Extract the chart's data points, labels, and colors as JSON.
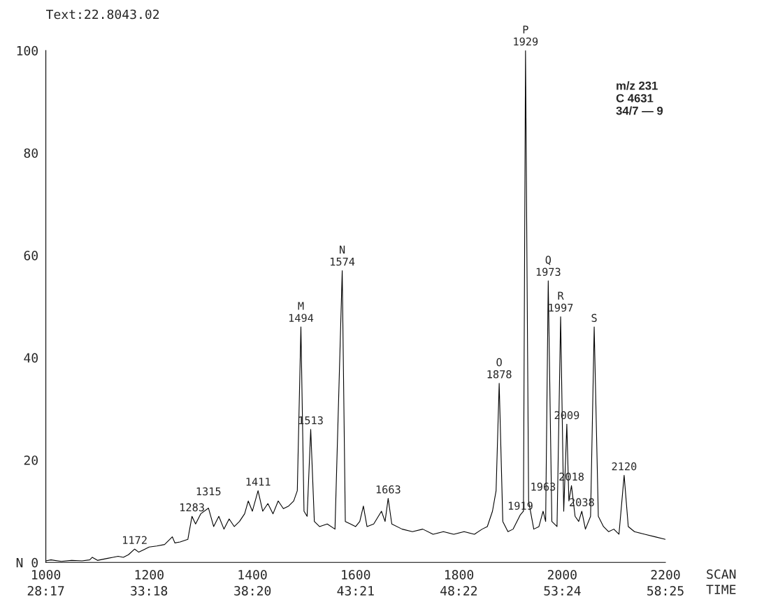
{
  "chart_data": {
    "type": "line",
    "title": "Text:22.8043.02",
    "xlabel": "SCAN",
    "x2label": "TIME",
    "x": [
      1000,
      1010,
      1030,
      1050,
      1070,
      1085,
      1090,
      1100,
      1110,
      1120,
      1130,
      1140,
      1150,
      1160,
      1172,
      1180,
      1190,
      1200,
      1215,
      1230,
      1245,
      1250,
      1260,
      1275,
      1283,
      1290,
      1300,
      1315,
      1325,
      1335,
      1345,
      1355,
      1365,
      1375,
      1385,
      1392,
      1400,
      1411,
      1420,
      1430,
      1440,
      1450,
      1460,
      1470,
      1480,
      1487,
      1494,
      1500,
      1506,
      1513,
      1520,
      1530,
      1545,
      1560,
      1574,
      1580,
      1590,
      1600,
      1608,
      1615,
      1622,
      1635,
      1650,
      1657,
      1663,
      1670,
      1690,
      1710,
      1730,
      1750,
      1770,
      1790,
      1810,
      1830,
      1845,
      1855,
      1865,
      1872,
      1878,
      1885,
      1895,
      1905,
      1919,
      1925,
      1929,
      1935,
      1945,
      1955,
      1963,
      1968,
      1973,
      1980,
      1990,
      1997,
      2003,
      2009,
      2013,
      2018,
      2025,
      2032,
      2038,
      2045,
      2055,
      2062,
      2070,
      2080,
      2090,
      2100,
      2110,
      2120,
      2128,
      2140,
      2160,
      2180,
      2200
    ],
    "series": [
      {
        "color": "#000000",
        "values": [
          0.3,
          0.5,
          0.2,
          0.4,
          0.3,
          0.5,
          1.0,
          0.4,
          0.6,
          0.8,
          1.0,
          1.2,
          1.0,
          1.5,
          2.6,
          2.0,
          2.5,
          3.0,
          3.2,
          3.5,
          5.0,
          3.8,
          4.0,
          4.5,
          9.0,
          7.5,
          9.5,
          10.6,
          7.0,
          9.0,
          6.5,
          8.5,
          7.0,
          8.0,
          9.5,
          12.0,
          10.0,
          14.0,
          10.0,
          11.5,
          9.5,
          12.0,
          10.5,
          11.0,
          12.0,
          14.0,
          46.0,
          10.0,
          9.0,
          26.0,
          8.0,
          7.0,
          7.5,
          6.5,
          57.0,
          8.0,
          7.5,
          7.0,
          8.0,
          11.0,
          7.0,
          7.5,
          10.0,
          8.0,
          12.5,
          7.5,
          6.5,
          6.0,
          6.5,
          5.5,
          6.0,
          5.5,
          6.0,
          5.5,
          6.5,
          7.0,
          10.0,
          14.0,
          35.0,
          8.0,
          6.0,
          6.5,
          9.3,
          10.0,
          100.0,
          12.0,
          6.5,
          7.0,
          10.0,
          8.0,
          55.0,
          8.0,
          7.0,
          48.0,
          10.0,
          27.0,
          12.0,
          15.0,
          9.0,
          8.0,
          10.0,
          6.5,
          9.0,
          46.0,
          9.0,
          7.0,
          6.0,
          6.5,
          5.5,
          17.0,
          7.0,
          6.0,
          5.5,
          5.0,
          4.5
        ]
      }
    ],
    "xlim": [
      1000,
      2200
    ],
    "xticks": [
      1000,
      1200,
      1400,
      1600,
      1800,
      2000,
      2200
    ],
    "x2lim": [
      28.283,
      58.417
    ],
    "x2ticks": [
      {
        "value": 28.283,
        "label": "28:17"
      },
      {
        "value": 33.3,
        "label": "33:18"
      },
      {
        "value": 38.333,
        "label": "38:20"
      },
      {
        "value": 43.35,
        "label": "43:21"
      },
      {
        "value": 48.367,
        "label": "48:22"
      },
      {
        "value": 53.4,
        "label": "53:24"
      },
      {
        "value": 58.417,
        "label": "58:25"
      }
    ],
    "ylim": [
      0,
      100
    ],
    "yticks": [
      {
        "value": 0,
        "label": "N 0"
      },
      20,
      40,
      60,
      80,
      100
    ],
    "grid": false,
    "legend": false,
    "annotations": [
      {
        "text": "1172",
        "x": 1172,
        "y": 2.6
      },
      {
        "text": "1283",
        "x": 1283,
        "y": 9.0
      },
      {
        "text": "1315",
        "x": 1315,
        "y": 10.6
      },
      {
        "text": "1411",
        "x": 1411,
        "y": 14.0
      },
      {
        "text": "M\n1494",
        "x": 1494,
        "y": 46.0
      },
      {
        "text": "1513",
        "x": 1513,
        "y": 26.0
      },
      {
        "text": "N\n1574",
        "x": 1574,
        "y": 57.0
      },
      {
        "text": "1663",
        "x": 1663,
        "y": 12.5
      },
      {
        "text": "O\n1878",
        "x": 1878,
        "y": 35.0
      },
      {
        "text": "1919",
        "x": 1919,
        "y": 9.3
      },
      {
        "text": "P\n1929",
        "x": 1929,
        "y": 100.0
      },
      {
        "text": "1963",
        "x": 1963,
        "y": 10.0
      },
      {
        "text": "Q\n1973",
        "x": 1973,
        "y": 55.0
      },
      {
        "text": "R\n1997",
        "x": 1997,
        "y": 48.0
      },
      {
        "text": "2009",
        "x": 2009,
        "y": 27.0
      },
      {
        "text": "2018",
        "x": 2018,
        "y": 15.0
      },
      {
        "text": "2038",
        "x": 2038,
        "y": 10.0
      },
      {
        "text": "S",
        "x": 2062,
        "y": 46.0
      },
      {
        "text": "2120",
        "x": 2120,
        "y": 17.0
      },
      "m/z 231\nC 4631\n34/7 — 9"
    ]
  }
}
